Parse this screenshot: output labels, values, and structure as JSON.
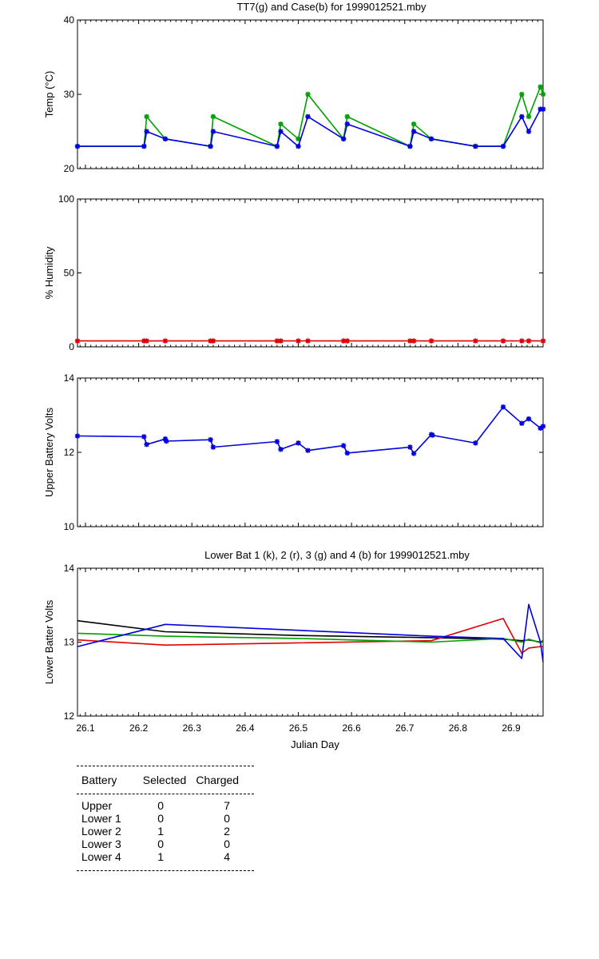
{
  "chart_data": [
    {
      "type": "line",
      "title": "TT7(g) and Case(b) for 1999012521.mby",
      "xlabel": "",
      "ylabel": "Temp (°C)",
      "xlim": [
        26.085,
        26.96
      ],
      "ylim": [
        20,
        40
      ],
      "yticks": [
        20,
        30,
        40
      ],
      "grid": false,
      "series": [
        {
          "name": "TT7",
          "color": "#00a000",
          "x": [
            26.085,
            26.21,
            26.215,
            26.25,
            26.335,
            26.34,
            26.46,
            26.467,
            26.5,
            26.518,
            26.585,
            26.592,
            26.71,
            26.717,
            26.75,
            26.833,
            26.885,
            26.92,
            26.933,
            26.955,
            26.96
          ],
          "y": [
            23,
            23,
            27,
            24,
            23,
            27,
            23,
            26,
            24,
            30,
            24,
            27,
            23,
            26,
            24,
            23,
            23,
            30,
            27,
            31,
            30
          ]
        },
        {
          "name": "Case",
          "color": "#0000e0",
          "x": [
            26.085,
            26.21,
            26.215,
            26.25,
            26.335,
            26.34,
            26.46,
            26.467,
            26.5,
            26.518,
            26.585,
            26.592,
            26.71,
            26.717,
            26.75,
            26.833,
            26.885,
            26.92,
            26.933,
            26.955,
            26.96
          ],
          "y": [
            23,
            23,
            25,
            24,
            23,
            25,
            23,
            25,
            23,
            27,
            24,
            26,
            23,
            25,
            24,
            23,
            23,
            27,
            25,
            28,
            28
          ]
        }
      ]
    },
    {
      "type": "line",
      "title": "",
      "xlabel": "",
      "ylabel": "% Humidity",
      "xlim": [
        26.085,
        26.96
      ],
      "ylim": [
        0,
        100
      ],
      "yticks": [
        0,
        50,
        100
      ],
      "grid": false,
      "series": [
        {
          "name": "Humidity",
          "color": "#e00000",
          "x": [
            26.085,
            26.21,
            26.215,
            26.25,
            26.335,
            26.34,
            26.46,
            26.467,
            26.5,
            26.518,
            26.585,
            26.592,
            26.71,
            26.717,
            26.75,
            26.833,
            26.885,
            26.92,
            26.933,
            26.96
          ],
          "y": [
            4,
            4,
            4,
            4,
            4,
            4,
            4,
            4,
            4,
            4,
            4,
            4,
            4,
            4,
            4,
            4,
            4,
            4,
            4,
            4
          ]
        }
      ]
    },
    {
      "type": "line",
      "title": "",
      "xlabel": "",
      "ylabel": "Upper Battery Volts",
      "xlim": [
        26.085,
        26.96
      ],
      "ylim": [
        10,
        14
      ],
      "yticks": [
        10,
        12,
        14
      ],
      "grid": false,
      "series": [
        {
          "name": "Upper Battery",
          "color": "#0000e0",
          "x": [
            26.085,
            26.21,
            26.215,
            26.25,
            26.252,
            26.335,
            26.34,
            26.46,
            26.467,
            26.5,
            26.518,
            26.585,
            26.592,
            26.71,
            26.717,
            26.75,
            26.752,
            26.833,
            26.885,
            26.92,
            26.933,
            26.955,
            26.96
          ],
          "y": [
            12.44,
            12.42,
            12.21,
            12.36,
            12.3,
            12.34,
            12.14,
            12.29,
            12.08,
            12.25,
            12.05,
            12.18,
            11.98,
            12.14,
            11.97,
            12.48,
            12.46,
            12.25,
            13.22,
            12.78,
            12.9,
            12.65,
            12.7
          ]
        }
      ]
    },
    {
      "type": "line",
      "title": "Lower Bat 1 (k), 2 (r), 3 (g) and 4 (b) for 1999012521.mby",
      "xlabel": "Julian Day",
      "ylabel": "Lower Batter Volts",
      "xlim": [
        26.085,
        26.96
      ],
      "ylim": [
        12,
        14
      ],
      "yticks": [
        12,
        13,
        14
      ],
      "xticks": [
        26.1,
        26.2,
        26.3,
        26.4,
        26.5,
        26.6,
        26.7,
        26.8,
        26.9
      ],
      "grid": false,
      "series": [
        {
          "name": "Lower Bat 1",
          "color": "#000000",
          "x": [
            26.085,
            26.25,
            26.5,
            26.75,
            26.885,
            26.92,
            26.933,
            26.955,
            26.96
          ],
          "y": [
            13.29,
            13.14,
            13.09,
            13.06,
            13.04,
            13.02,
            13.03,
            13.0,
            13.02
          ]
        },
        {
          "name": "Lower Bat 2",
          "color": "#e00000",
          "x": [
            26.085,
            26.25,
            26.5,
            26.75,
            26.885,
            26.92,
            26.933,
            26.955,
            26.96
          ],
          "y": [
            13.03,
            12.96,
            12.99,
            13.02,
            13.32,
            12.85,
            12.92,
            12.94,
            12.94
          ]
        },
        {
          "name": "Lower Bat 3",
          "color": "#00a000",
          "x": [
            26.085,
            26.25,
            26.5,
            26.75,
            26.885,
            26.92,
            26.933,
            26.955,
            26.96
          ],
          "y": [
            13.12,
            13.08,
            13.05,
            13.0,
            13.05,
            13.0,
            13.04,
            12.99,
            13.01
          ]
        },
        {
          "name": "Lower Bat 4",
          "color": "#0000e0",
          "x": [
            26.085,
            26.25,
            26.5,
            26.75,
            26.885,
            26.92,
            26.933,
            26.955,
            26.96
          ],
          "y": [
            12.94,
            13.24,
            13.16,
            13.08,
            13.05,
            12.78,
            13.51,
            13.0,
            12.73
          ]
        }
      ]
    }
  ],
  "table": {
    "headers": [
      "Battery",
      "Selected",
      "Charged"
    ],
    "rows": [
      [
        "Upper",
        "0",
        "7"
      ],
      [
        "Lower 1",
        "0",
        "0"
      ],
      [
        "Lower 2",
        "1",
        "2"
      ],
      [
        "Lower 3",
        "0",
        "0"
      ],
      [
        "Lower 4",
        "1",
        "4"
      ]
    ]
  }
}
